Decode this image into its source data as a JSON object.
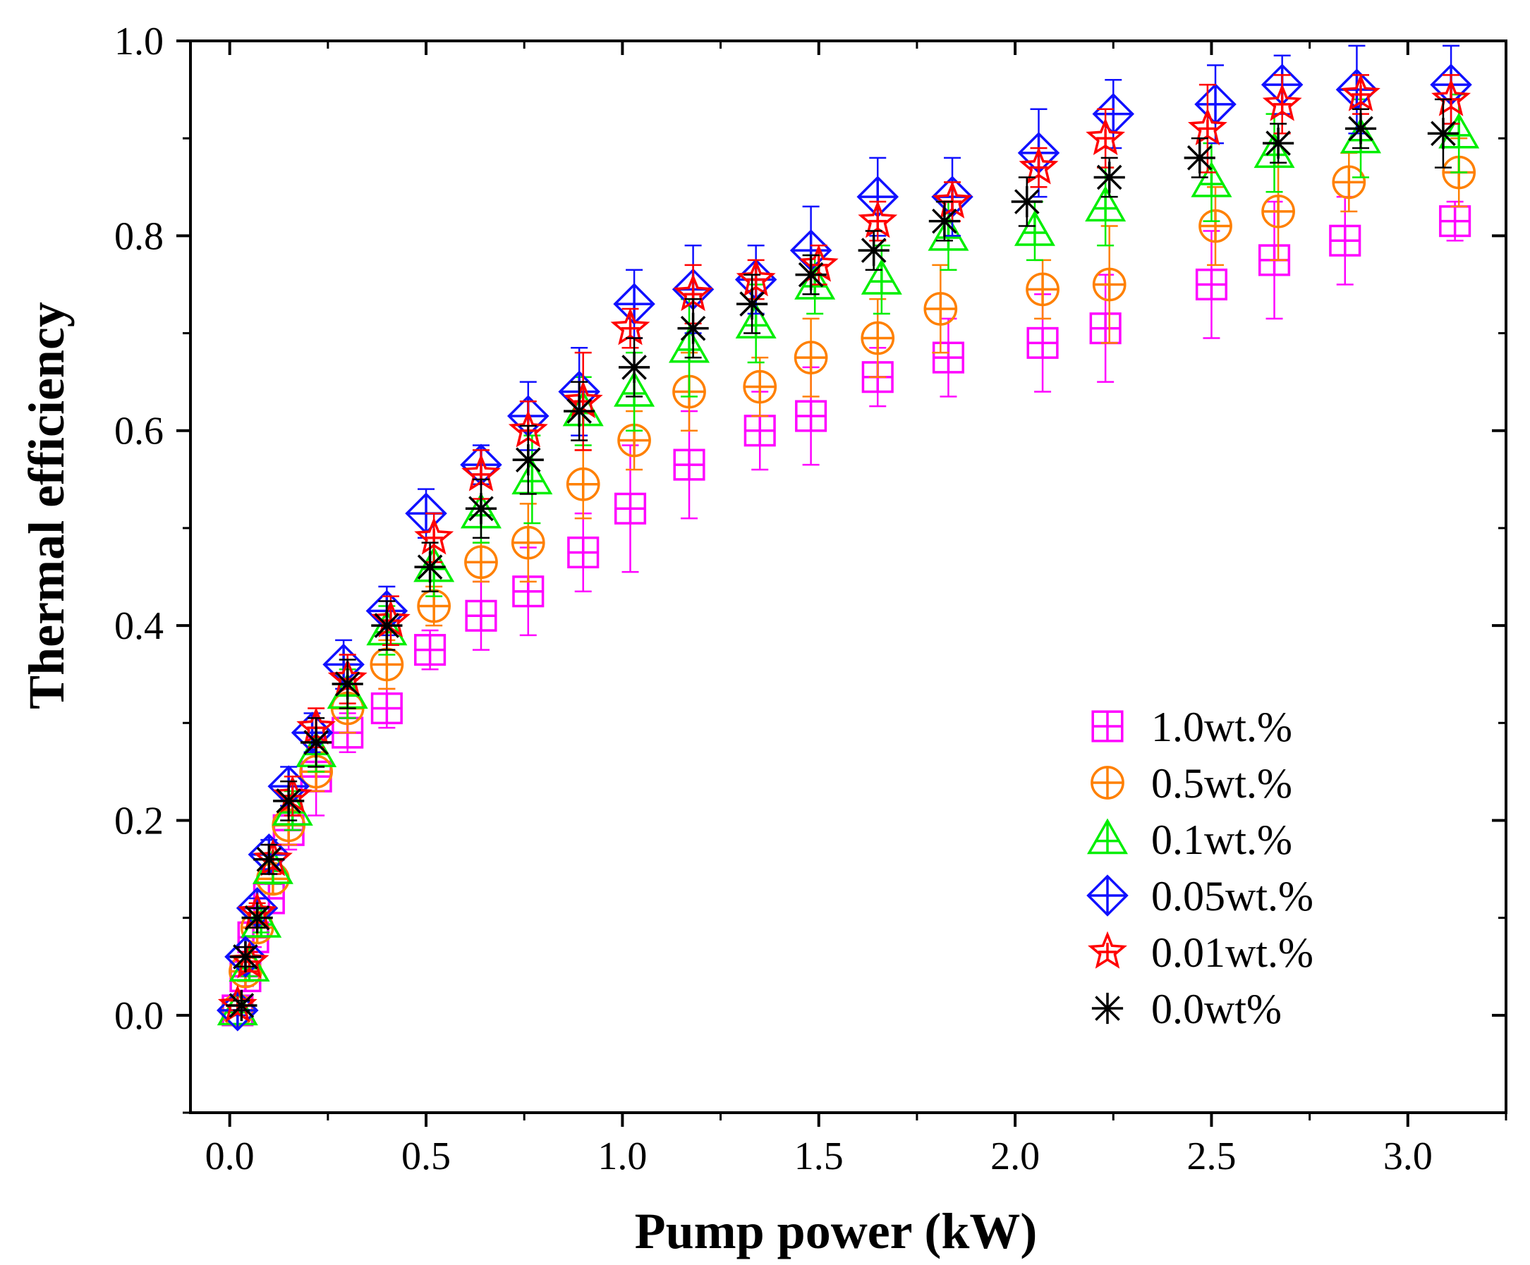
{
  "chart_data": {
    "type": "scatter",
    "title": "",
    "xlabel": "Pump power (kW)",
    "ylabel": "Thermal efficiency",
    "xlim": [
      -0.1,
      3.25
    ],
    "ylim": [
      -0.1,
      1.0
    ],
    "xticks": [
      0.0,
      0.5,
      1.0,
      1.5,
      2.0,
      2.5,
      3.0
    ],
    "yticks": [
      0.0,
      0.2,
      0.4,
      0.6,
      0.8,
      1.0
    ],
    "xtick_labels": [
      "0.0",
      "0.5",
      "1.0",
      "1.5",
      "2.0",
      "2.5",
      "3.0"
    ],
    "ytick_labels": [
      "0.0",
      "0.2",
      "0.4",
      "0.6",
      "0.8",
      "1.0"
    ],
    "grid": false,
    "legend_position": "bottom-right",
    "series": [
      {
        "name": "1.0wt.%",
        "marker": "square-plus",
        "color": "#ff00ff",
        "x": [
          0.02,
          0.04,
          0.06,
          0.1,
          0.15,
          0.22,
          0.3,
          0.4,
          0.51,
          0.64,
          0.76,
          0.9,
          1.02,
          1.17,
          1.35,
          1.48,
          1.65,
          1.83,
          2.07,
          2.23,
          2.5,
          2.66,
          2.84,
          3.12
        ],
        "y": [
          0.005,
          0.04,
          0.08,
          0.12,
          0.19,
          0.245,
          0.29,
          0.315,
          0.375,
          0.41,
          0.435,
          0.475,
          0.52,
          0.565,
          0.6,
          0.615,
          0.655,
          0.675,
          0.69,
          0.705,
          0.75,
          0.775,
          0.795,
          0.815
        ],
        "err": [
          0.005,
          0.01,
          0.01,
          0.015,
          0.02,
          0.04,
          0.02,
          0.02,
          0.02,
          0.035,
          0.045,
          0.04,
          0.065,
          0.055,
          0.04,
          0.05,
          0.03,
          0.04,
          0.05,
          0.055,
          0.055,
          0.06,
          0.045,
          0.02
        ]
      },
      {
        "name": "0.5wt.%",
        "marker": "circle-plus",
        "color": "#ff8000",
        "x": [
          0.02,
          0.04,
          0.07,
          0.11,
          0.15,
          0.22,
          0.3,
          0.4,
          0.52,
          0.64,
          0.76,
          0.9,
          1.03,
          1.17,
          1.35,
          1.48,
          1.65,
          1.81,
          2.07,
          2.24,
          2.51,
          2.67,
          2.85,
          3.13
        ],
        "y": [
          0.005,
          0.045,
          0.09,
          0.14,
          0.195,
          0.25,
          0.315,
          0.36,
          0.42,
          0.465,
          0.485,
          0.545,
          0.59,
          0.64,
          0.645,
          0.675,
          0.695,
          0.725,
          0.745,
          0.75,
          0.81,
          0.825,
          0.855,
          0.865
        ],
        "err": [
          0.005,
          0.01,
          0.01,
          0.015,
          0.02,
          0.02,
          0.025,
          0.025,
          0.02,
          0.02,
          0.04,
          0.035,
          0.03,
          0.04,
          0.03,
          0.04,
          0.04,
          0.045,
          0.03,
          0.06,
          0.04,
          0.05,
          0.03,
          0.035
        ]
      },
      {
        "name": "0.1wt.%",
        "marker": "triangle-plus",
        "color": "#00ee00",
        "x": [
          0.02,
          0.05,
          0.08,
          0.11,
          0.16,
          0.22,
          0.3,
          0.4,
          0.52,
          0.64,
          0.77,
          0.9,
          1.03,
          1.17,
          1.34,
          1.49,
          1.66,
          1.83,
          2.05,
          2.23,
          2.5,
          2.66,
          2.88,
          3.13
        ],
        "y": [
          0.005,
          0.05,
          0.095,
          0.15,
          0.21,
          0.27,
          0.33,
          0.395,
          0.46,
          0.515,
          0.55,
          0.62,
          0.64,
          0.685,
          0.71,
          0.75,
          0.755,
          0.8,
          0.805,
          0.83,
          0.855,
          0.885,
          0.9,
          0.905
        ],
        "err": [
          0.005,
          0.01,
          0.01,
          0.015,
          0.02,
          0.02,
          0.025,
          0.025,
          0.03,
          0.03,
          0.045,
          0.035,
          0.04,
          0.05,
          0.04,
          0.03,
          0.035,
          0.035,
          0.03,
          0.04,
          0.04,
          0.04,
          0.04,
          0.04
        ]
      },
      {
        "name": "0.05wt.%",
        "marker": "diamond-plus",
        "color": "#1010ff",
        "x": [
          0.02,
          0.04,
          0.07,
          0.1,
          0.15,
          0.21,
          0.29,
          0.4,
          0.5,
          0.64,
          0.76,
          0.89,
          1.03,
          1.18,
          1.34,
          1.48,
          1.65,
          1.84,
          2.06,
          2.25,
          2.51,
          2.68,
          2.87,
          3.11
        ],
        "y": [
          0.005,
          0.06,
          0.11,
          0.165,
          0.235,
          0.29,
          0.36,
          0.415,
          0.515,
          0.565,
          0.615,
          0.64,
          0.73,
          0.745,
          0.755,
          0.785,
          0.84,
          0.84,
          0.885,
          0.925,
          0.935,
          0.955,
          0.95,
          0.955
        ],
        "err": [
          0.005,
          0.01,
          0.01,
          0.015,
          0.02,
          0.02,
          0.025,
          0.025,
          0.025,
          0.02,
          0.035,
          0.045,
          0.035,
          0.045,
          0.035,
          0.045,
          0.04,
          0.04,
          0.045,
          0.035,
          0.04,
          0.03,
          0.045,
          0.04
        ]
      },
      {
        "name": "0.01wt.%",
        "marker": "star",
        "color": "#ff0000",
        "x": [
          0.02,
          0.05,
          0.07,
          0.11,
          0.16,
          0.22,
          0.3,
          0.41,
          0.52,
          0.64,
          0.76,
          0.9,
          1.02,
          1.18,
          1.34,
          1.5,
          1.65,
          1.84,
          2.06,
          2.23,
          2.49,
          2.68,
          2.88,
          3.11
        ],
        "y": [
          0.01,
          0.055,
          0.105,
          0.16,
          0.225,
          0.295,
          0.345,
          0.405,
          0.49,
          0.555,
          0.6,
          0.63,
          0.705,
          0.74,
          0.755,
          0.77,
          0.815,
          0.835,
          0.87,
          0.9,
          0.91,
          0.935,
          0.945,
          0.94
        ],
        "err": [
          0.005,
          0.01,
          0.01,
          0.015,
          0.02,
          0.02,
          0.025,
          0.025,
          0.025,
          0.025,
          0.03,
          0.05,
          0.02,
          0.03,
          0.02,
          0.02,
          0.02,
          0.02,
          0.02,
          0.03,
          0.045,
          0.03,
          0.02,
          0.025
        ]
      },
      {
        "name": "0.0wt%",
        "marker": "asterisk",
        "color": "#000000",
        "x": [
          0.03,
          0.04,
          0.07,
          0.1,
          0.15,
          0.22,
          0.3,
          0.4,
          0.51,
          0.64,
          0.76,
          0.89,
          1.03,
          1.18,
          1.33,
          1.48,
          1.64,
          1.82,
          2.03,
          2.24,
          2.47,
          2.67,
          2.88,
          3.09
        ],
        "y": [
          0.01,
          0.06,
          0.1,
          0.16,
          0.22,
          0.28,
          0.34,
          0.4,
          0.46,
          0.52,
          0.57,
          0.62,
          0.665,
          0.705,
          0.73,
          0.76,
          0.785,
          0.815,
          0.835,
          0.86,
          0.88,
          0.895,
          0.91,
          0.905
        ],
        "err": [
          0.005,
          0.01,
          0.01,
          0.015,
          0.02,
          0.025,
          0.025,
          0.025,
          0.025,
          0.03,
          0.035,
          0.03,
          0.03,
          0.03,
          0.03,
          0.02,
          0.02,
          0.02,
          0.025,
          0.02,
          0.02,
          0.02,
          0.02,
          0.035
        ]
      }
    ]
  }
}
